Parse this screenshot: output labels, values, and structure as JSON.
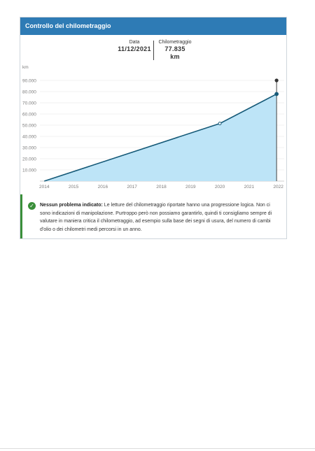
{
  "header": {
    "title": "Controllo del chilometraggio"
  },
  "reading": {
    "date_label": "Data",
    "date_value": "11/12/2021",
    "km_label": "Chilometraggio",
    "km_value": "77.835",
    "km_unit": "km"
  },
  "colors": {
    "header": "#2e7bb5",
    "area": "#bde4f7",
    "line": "#165a78",
    "ok": "#3a8f3a"
  },
  "chart_data": {
    "type": "area",
    "ylabel": "km",
    "ylim": [
      0,
      100000
    ],
    "y_ticks": [
      10000,
      20000,
      30000,
      40000,
      50000,
      60000,
      70000,
      80000,
      90000
    ],
    "y_tick_labels": [
      "10.000",
      "20.000",
      "30.000",
      "40.000",
      "50.000",
      "60.000",
      "70.000",
      "80.000",
      "90.000"
    ],
    "x_ticks": [
      2014,
      2015,
      2016,
      2017,
      2018,
      2019,
      2020,
      2021,
      2022
    ],
    "x_tick_labels": [
      "2014",
      "2015",
      "2016",
      "2017",
      "2018",
      "2019",
      "2020",
      "2021",
      "2022"
    ],
    "xlim": [
      2013.85,
      2022.2
    ],
    "series": [
      {
        "x": [
          2014.0,
          2020.0,
          2021.94
        ],
        "y": [
          0,
          51500,
          77835
        ]
      }
    ],
    "marker": {
      "x": 2021.94,
      "y": 90000
    },
    "grid": true
  },
  "notice": {
    "title": "Nessun problema indicato:",
    "text": " Le letture del chilometraggio riportate hanno una progressione logica. Non ci sono indicazioni di manipolazione. Purtroppo però non possiamo garantirlo, quindi ti consigliamo sempre di valutare in maniera critica il chilometraggio, ad esempio sulla base dei segni di usura, del numero di cambi d'olio o dei chilometri medi percorsi in un anno."
  }
}
